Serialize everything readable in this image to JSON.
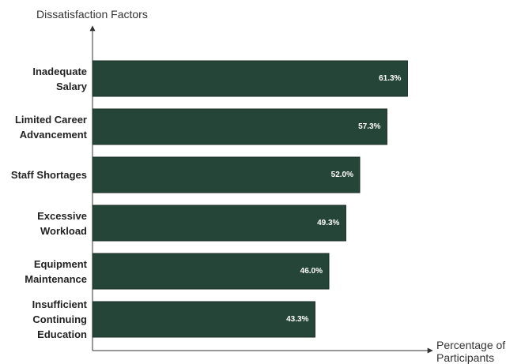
{
  "chart_data": {
    "type": "bar",
    "orientation": "horizontal",
    "y_label": "Dissatisfaction Factors",
    "x_label": "Percentage of Participants",
    "categories": [
      "Inadequate Salary",
      "Limited Career Advancement",
      "Staff Shortages",
      "Excessive Workload",
      "Equipment Maintenance",
      "Insufficient Continuing Education"
    ],
    "values": [
      61.3,
      57.3,
      52.0,
      49.3,
      46.0,
      43.3
    ],
    "value_labels": [
      "61.3%",
      "57.3%",
      "52.0%",
      "49.3%",
      "46.0%",
      "43.3%"
    ],
    "color": "#264539",
    "xlim": [
      0,
      66
    ]
  }
}
